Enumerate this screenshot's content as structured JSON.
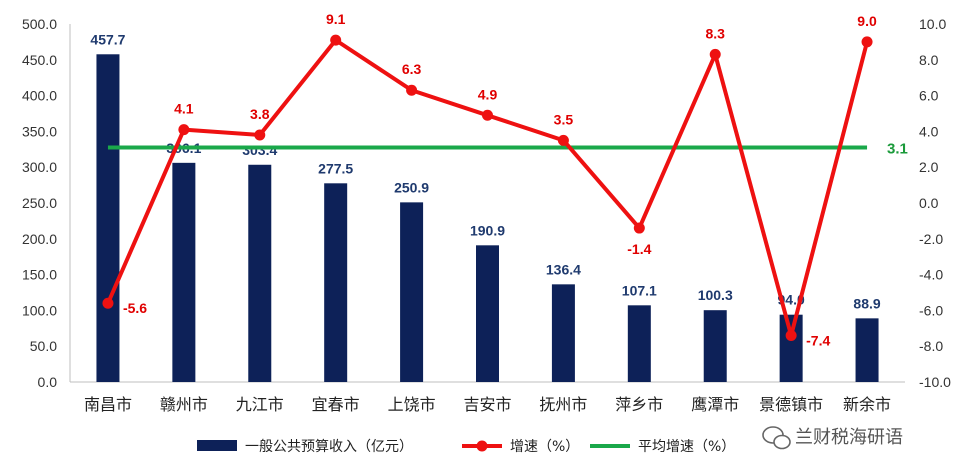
{
  "chart_data": {
    "type": "bar",
    "categories": [
      "南昌市",
      "赣州市",
      "九江市",
      "宜春市",
      "上饶市",
      "吉安市",
      "抚州市",
      "萍乡市",
      "鹰潭市",
      "景德镇市",
      "新余市"
    ],
    "series": [
      {
        "name": "一般公共预算收入（亿元）",
        "type": "bar",
        "axis": "left",
        "color": "#0d2158",
        "values": [
          457.7,
          306.1,
          303.4,
          277.5,
          250.9,
          190.9,
          136.4,
          107.1,
          100.3,
          94.0,
          88.9
        ],
        "labels": [
          "457.7",
          "306.1",
          "303.4",
          "277.5",
          "250.9",
          "190.9",
          "136.4",
          "107.1",
          "100.3",
          "94.0",
          "88.9"
        ]
      },
      {
        "name": "增速（%）",
        "type": "line",
        "axis": "right",
        "color": "#ee1111",
        "values": [
          -5.6,
          4.1,
          3.8,
          9.1,
          6.3,
          4.9,
          3.5,
          -1.4,
          8.3,
          -7.4,
          9.0
        ],
        "labels": [
          "-5.6",
          "4.1",
          "3.8",
          "9.1",
          "6.3",
          "4.9",
          "3.5",
          "-1.4",
          "8.3",
          "-7.4",
          "9.0"
        ]
      },
      {
        "name": "平均增速（%）",
        "type": "line",
        "axis": "right",
        "color": "#1aa84a",
        "value": 3.1,
        "label": "3.1"
      }
    ],
    "y_left": {
      "min": 0,
      "max": 500,
      "step": 50,
      "ticks": [
        "0.0",
        "50.0",
        "100.0",
        "150.0",
        "200.0",
        "250.0",
        "300.0",
        "350.0",
        "400.0",
        "450.0",
        "500.0"
      ]
    },
    "y_right": {
      "min": -10,
      "max": 10,
      "step": 2,
      "ticks": [
        "-10.0",
        "-8.0",
        "-6.0",
        "-4.0",
        "-2.0",
        "0.0",
        "2.0",
        "4.0",
        "6.0",
        "8.0",
        "10.0"
      ]
    },
    "grid": false,
    "legend": {
      "placement": "bottom"
    }
  },
  "watermark": {
    "text": "兰财税海研语",
    "icon": "wechat-icon"
  }
}
